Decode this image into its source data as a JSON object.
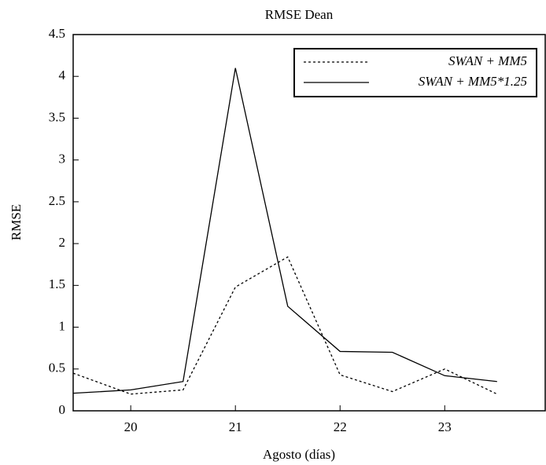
{
  "chart_data": {
    "type": "line",
    "title": "RMSE Dean",
    "xlabel": "Agosto (días)",
    "ylabel": "RMSE",
    "x": [
      19.45,
      20,
      20.5,
      21,
      21.5,
      22,
      22.5,
      23,
      23.5
    ],
    "series": [
      {
        "name": "SWAN + MM5",
        "color": "#000000",
        "dash": "3,3",
        "values": [
          0.45,
          0.2,
          0.25,
          1.48,
          1.84,
          0.43,
          0.23,
          0.5,
          0.2
        ]
      },
      {
        "name": "SWAN + MM5*1.25",
        "color": "#000000",
        "dash": "none",
        "values": [
          0.21,
          0.25,
          0.35,
          4.1,
          1.25,
          0.71,
          0.7,
          0.42,
          0.35
        ]
      }
    ],
    "xlim": [
      19.45,
      23.96
    ],
    "xticks": [
      20,
      21,
      22,
      23
    ],
    "ylim": [
      0,
      4.5
    ],
    "yticks": [
      0,
      0.5,
      1,
      1.5,
      2,
      2.5,
      3,
      3.5,
      4,
      4.5
    ],
    "legend": "upper-right"
  }
}
